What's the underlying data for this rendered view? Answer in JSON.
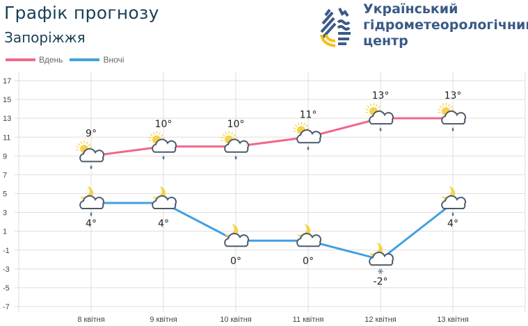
{
  "header": {
    "title": "Графік прогнозу",
    "city": "Запоріжжя"
  },
  "org": {
    "line1": "Український",
    "line2": "гідрометеорологічний",
    "line3": "центр"
  },
  "colors": {
    "day": "#f0678a",
    "night": "#3fa0e0",
    "grid": "#dddddd",
    "text": "#222222"
  },
  "chart_data": {
    "type": "line",
    "categories": [
      "8 квітня",
      "9 квітня",
      "10 квітня",
      "11 квітня",
      "12 квітня",
      "13 квітня"
    ],
    "series": [
      {
        "name": "Вдень",
        "values": [
          9,
          10,
          10,
          11,
          13,
          13
        ],
        "labels": [
          "9°",
          "10°",
          "10°",
          "11°",
          "13°",
          "13°"
        ],
        "icons": [
          "sun-cloud-rain",
          "sun-cloud-rain",
          "sun-cloud-rain",
          "sun-cloud-rain",
          "sun-cloud-rain",
          "sun-cloud-rain"
        ]
      },
      {
        "name": "Вночі",
        "values": [
          4,
          4,
          0,
          0,
          -2,
          4
        ],
        "labels": [
          "4°",
          "4°",
          "0°",
          "0°",
          "-2°",
          "4°"
        ],
        "icons": [
          "moon-cloud-rain",
          "moon-cloud",
          "moon-cloud",
          "moon-cloud",
          "moon-cloud-snow",
          "moon-cloud-rain"
        ]
      }
    ],
    "yticks": [
      "17",
      "15",
      "13",
      "11",
      "9",
      "7",
      "5",
      "3",
      "1",
      "-1",
      "-3",
      "-5",
      "-7"
    ],
    "ylim": [
      -7,
      17
    ],
    "grid": true,
    "legend": "top-left"
  }
}
